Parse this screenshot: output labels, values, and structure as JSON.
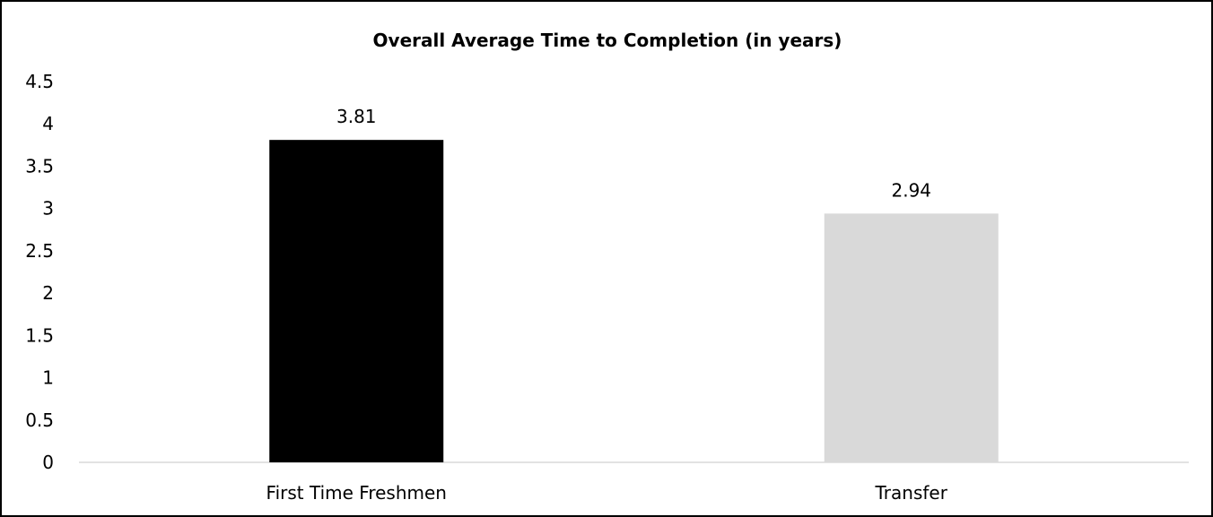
{
  "chart_data": {
    "type": "bar",
    "title": "Overall Average Time to Completion (in years)",
    "xlabel": "",
    "ylabel": "",
    "categories": [
      "First Time Freshmen",
      "Transfer"
    ],
    "values": [
      3.81,
      2.94
    ],
    "value_labels": [
      "3.81",
      "2.94"
    ],
    "bar_colors": [
      "#000000",
      "#d9d9d9"
    ],
    "ylim": [
      0,
      4.5
    ],
    "y_ticks": [
      "0",
      "0.5",
      "1",
      "1.5",
      "2",
      "2.5",
      "3",
      "3.5",
      "4",
      "4.5"
    ],
    "grid": false,
    "legend": "none"
  }
}
